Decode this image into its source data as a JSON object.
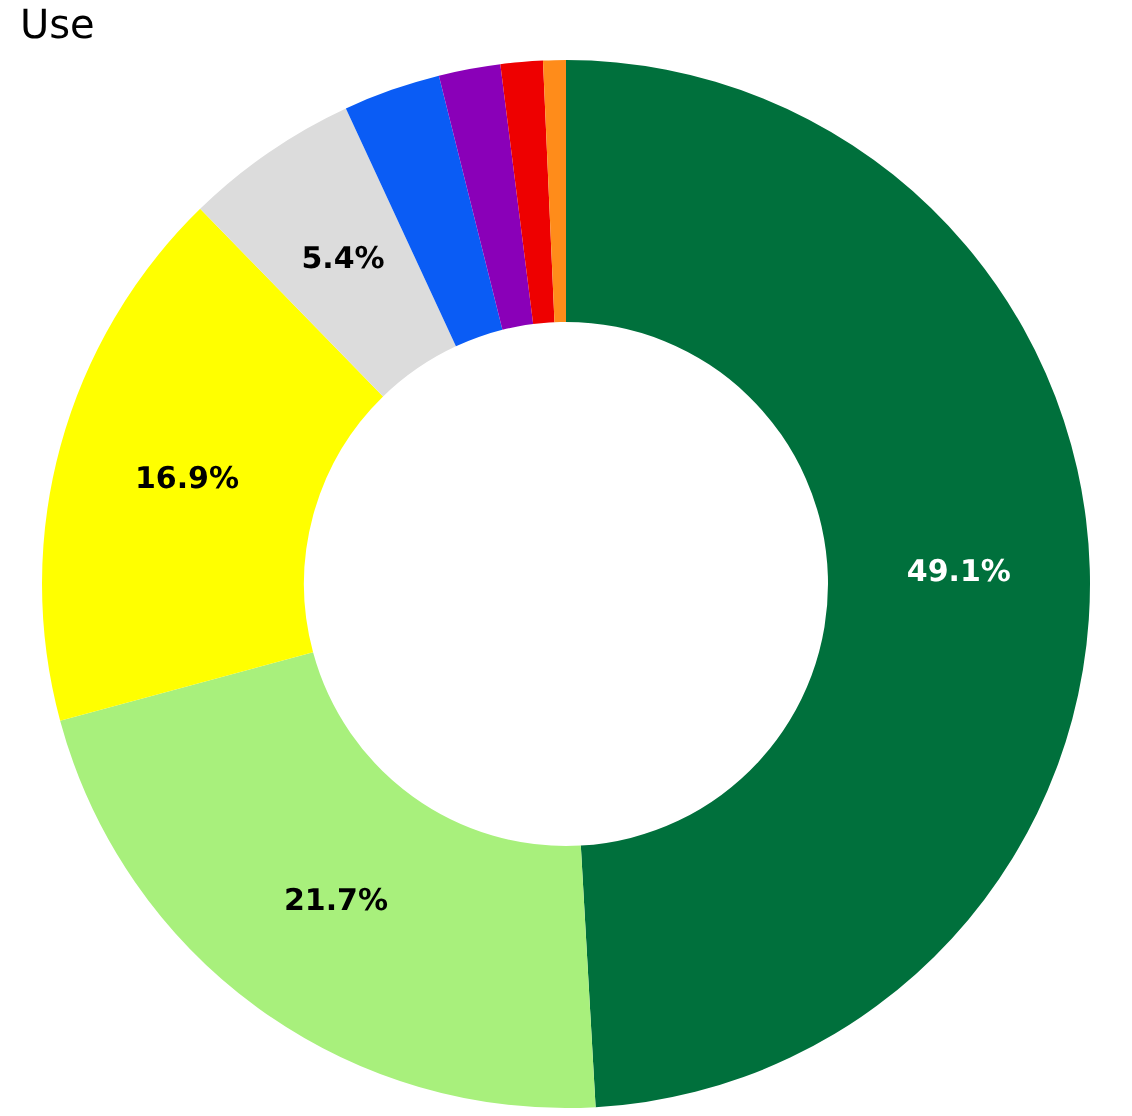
{
  "chart_data": {
    "type": "donut",
    "title": "Use",
    "categories": [
      null,
      null,
      null,
      null,
      null,
      null,
      null,
      null
    ],
    "values": [
      49.1,
      21.7,
      16.9,
      5.4,
      3.0,
      1.9,
      1.3,
      0.7
    ],
    "colors": [
      "#00703c",
      "#a8f07c",
      "#ffff00",
      "#dcdcdc",
      "#0a5cf5",
      "#8a00b8",
      "#ee0000",
      "#ff8c1a"
    ],
    "value_labels": [
      "49.1%",
      "21.7%",
      "16.9%",
      "5.4%",
      null,
      null,
      null,
      null
    ],
    "legend": false
  }
}
